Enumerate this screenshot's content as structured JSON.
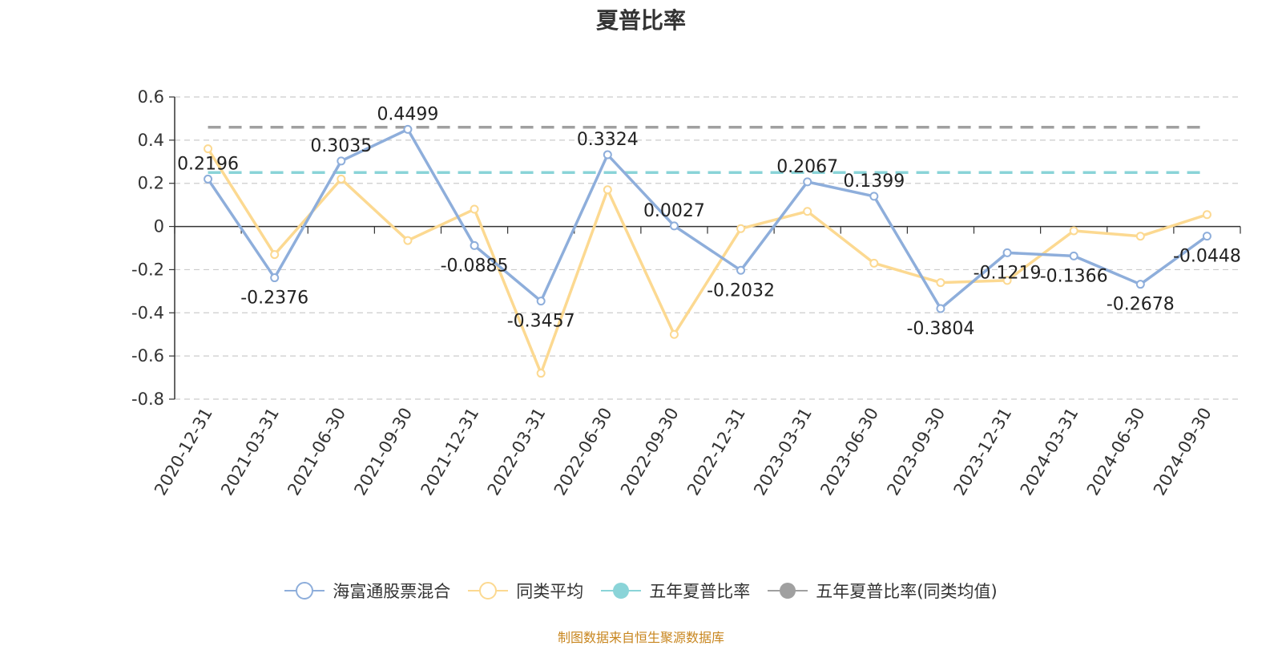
{
  "chart_data": {
    "type": "line",
    "title": "夏普比率",
    "categories": [
      "2020-12-31",
      "2021-03-31",
      "2021-06-30",
      "2021-09-30",
      "2021-12-31",
      "2022-03-31",
      "2022-06-30",
      "2022-09-30",
      "2022-12-31",
      "2023-03-31",
      "2023-06-30",
      "2023-09-30",
      "2023-12-31",
      "2024-03-31",
      "2024-06-30",
      "2024-09-30"
    ],
    "ylim": [
      -0.8,
      0.6
    ],
    "yticks": [
      "0.6",
      "0.4",
      "0.2",
      "0",
      "-0.2",
      "-0.4",
      "-0.6",
      "-0.8"
    ],
    "grid": true,
    "legend_position": "bottom",
    "series": [
      {
        "name": "海富通股票混合",
        "color": "#8eaedb",
        "values": [
          0.2196,
          -0.2376,
          0.3035,
          0.4499,
          -0.0885,
          -0.3457,
          0.3324,
          0.0027,
          -0.2032,
          0.2067,
          0.1399,
          -0.3804,
          -0.1219,
          -0.1366,
          -0.2678,
          -0.0448
        ],
        "labels": [
          "0.2196",
          "-0.2376",
          "0.3035",
          "0.4499",
          "-0.0885",
          "-0.3457",
          "0.3324",
          "0.0027",
          "-0.2032",
          "0.2067",
          "0.1399",
          "-0.3804",
          "-0.1219",
          "-0.1366",
          "-0.2678",
          "-0.0448"
        ]
      },
      {
        "name": "同类平均",
        "color": "#fcd991",
        "values": [
          0.36,
          -0.13,
          0.22,
          -0.065,
          0.08,
          -0.68,
          0.17,
          -0.5,
          -0.01,
          0.07,
          -0.17,
          -0.26,
          -0.25,
          -0.02,
          -0.045,
          0.055
        ]
      },
      {
        "name": "五年夏普比率",
        "color": "#8ad4d8",
        "constant": 0.25
      },
      {
        "name": "五年夏普比率(同类均值)",
        "color": "#a0a0a0",
        "constant": 0.46
      }
    ]
  },
  "source_text": "制图数据来自恒生聚源数据库"
}
